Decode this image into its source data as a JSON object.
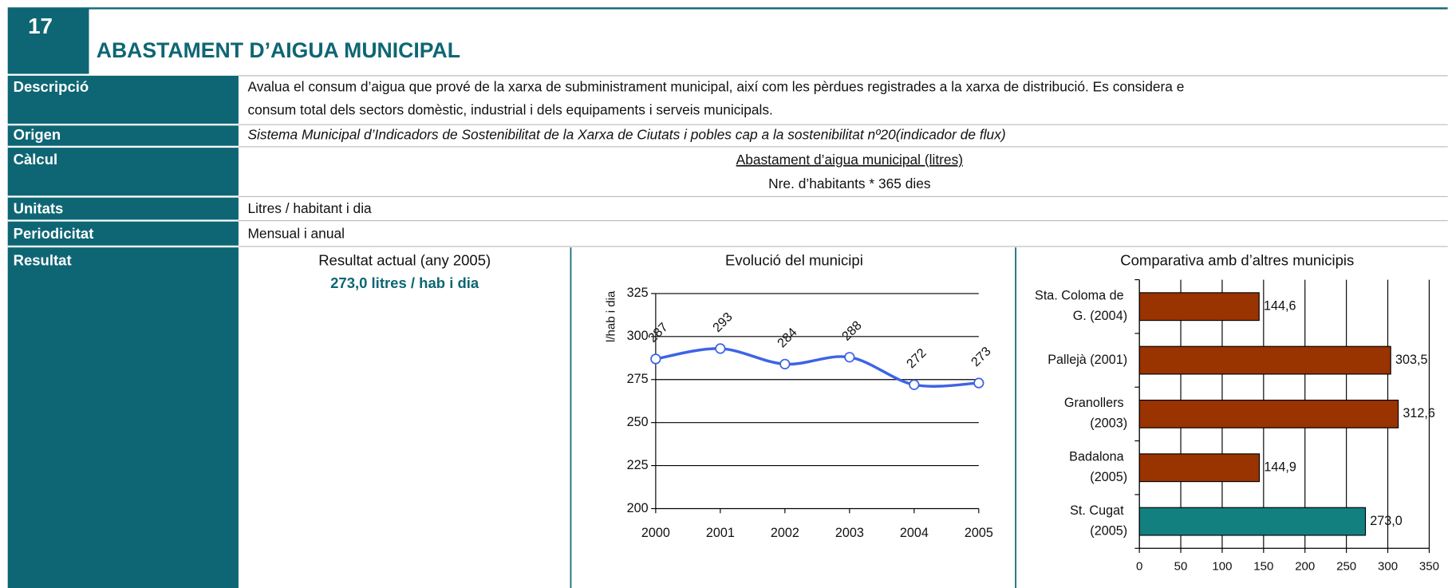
{
  "header": {
    "number": "17",
    "title": "ABASTAMENT D’AIGUA MUNICIPAL"
  },
  "rows": [
    {
      "label": "Descripció",
      "text": [
        "Avalua el consum d’aigua que prové de la xarxa de subministrament municipal, així com les pèrdues registrades a la xarxa de distribució. Es considera e",
        "consum total dels sectors domèstic, industrial i dels equipaments i serveis municipals."
      ]
    },
    {
      "label": "Origen",
      "text": [
        "Sistema Municipal d’Indicadors de Sostenibilitat  de la Xarxa de Ciutats i pobles cap a la sostenibilitat nº20(indicador de flux)"
      ]
    },
    {
      "label": "Càlcul",
      "text": [
        "Abastament d’aigua municipal (litres)",
        "Nre. d’habitants * 365 dies"
      ]
    },
    {
      "label": "Unitats",
      "text": [
        "Litres / habitant i dia"
      ]
    },
    {
      "label": "Periodicitat",
      "text": [
        "Mensual i anual"
      ]
    },
    {
      "label": "Resultat",
      "text": [
        "Resultat actual (any 2005)",
        "273,0 litres / hab i dia"
      ]
    }
  ],
  "chart_data": [
    {
      "type": "line",
      "title": "Evolució del municipi",
      "y_label": "l/hab i dia",
      "categories": [
        "2000",
        "2001",
        "2002",
        "2003",
        "2004",
        "2005"
      ],
      "values": [
        287,
        293,
        284,
        288,
        272,
        273
      ],
      "color": "#3d63e6",
      "ylim": [
        200,
        325
      ],
      "yticks": [
        200,
        225,
        250,
        275,
        300,
        325
      ],
      "grid": true
    },
    {
      "type": "hbar",
      "title": "Comparativa amb d’altres municipis",
      "categories": [
        "Sta. Coloma de G. (2004)",
        "Pallejà (2001)",
        "Granollers (2003)",
        "Badalona (2005)",
        "St. Cugat (2005)"
      ],
      "values": [
        144.6,
        303.5,
        312.6,
        144.9,
        273.0
      ],
      "value_labels": [
        "144,6",
        "303,5",
        "312,6",
        "144,9",
        "273,0"
      ],
      "colors": [
        "#993300",
        "#993300",
        "#993300",
        "#993300",
        "#138080"
      ],
      "xlim": [
        0,
        350
      ],
      "xticks": [
        0,
        50,
        100,
        150,
        200,
        250,
        300,
        350
      ],
      "grid": true
    }
  ]
}
